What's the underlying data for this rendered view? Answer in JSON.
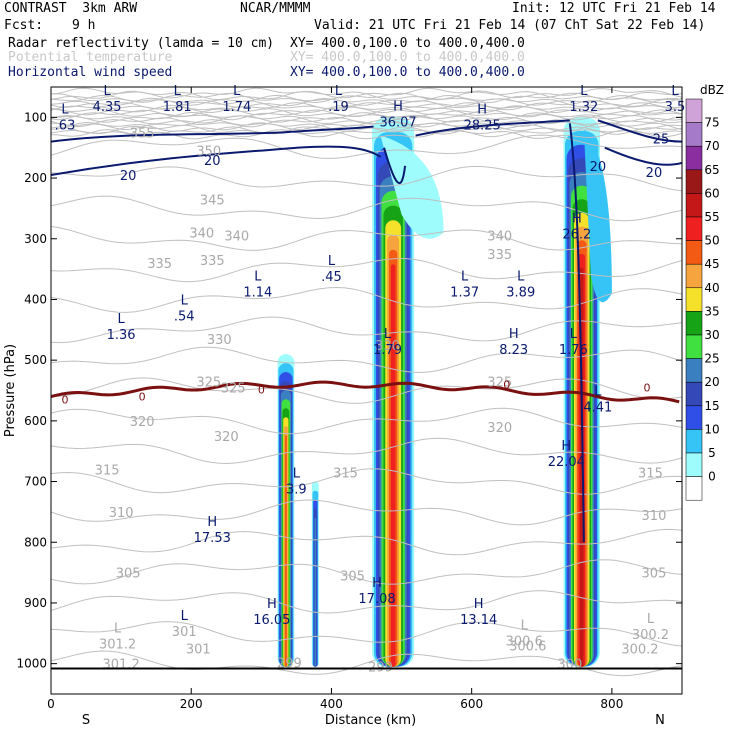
{
  "header": {
    "model": "CONTRAST  3km ARW",
    "org": "NCAR/MMMM",
    "init": "Init: 12 UTC Fri 21 Feb 14",
    "fcst_label": "Fcst:",
    "fcst_value": "9 h",
    "valid": "Valid: 21 UTC Fri 21 Feb 14 (07 ChT Sat 22 Feb 14)",
    "field1_name": "Radar reflectivity (lamda = 10 cm)",
    "field1_xy": "XY= 400.0,100.0 to 400.0,400.0",
    "field2_name": "Potential temperature",
    "field2_xy": "XY= 400.0,100.0 to 400.0,400.0",
    "field3_name": "Horizontal wind speed",
    "field3_xy": "XY= 400.0,100.0 to 400.0,400.0"
  },
  "colors": {
    "theta": "#c0c0c0",
    "wind": "#0a1a6e",
    "zero_isotherm": "#7a1010",
    "ground": "#000000"
  },
  "chart_data": {
    "type": "heatmap",
    "xlabel": "Distance (km)",
    "ylabel": "Pressure (hPa)",
    "xlim": [
      0,
      900
    ],
    "ylim": [
      1050,
      50
    ],
    "x_ticks": [
      0,
      200,
      400,
      600,
      800
    ],
    "y_ticks": [
      100,
      200,
      300,
      400,
      500,
      600,
      700,
      800,
      900,
      1000
    ],
    "x_end_labels": {
      "left": "S",
      "right": "N"
    },
    "colorbar": {
      "unit": "dBZ",
      "levels": [
        0,
        5,
        10,
        15,
        20,
        25,
        30,
        35,
        40,
        45,
        50,
        55,
        60,
        65,
        70,
        75
      ],
      "colors": [
        "#ffffff",
        "#9efcfc",
        "#36c3f6",
        "#2f4fe6",
        "#3448b8",
        "#3a7fbf",
        "#3fe03f",
        "#16a416",
        "#f6e12a",
        "#f5a43e",
        "#f35a14",
        "#ee2020",
        "#c41818",
        "#9a1818",
        "#8a2ea0",
        "#a57ac9",
        "#cfa2d8"
      ]
    },
    "reflectivity_columns": [
      {
        "name": "cell-330km",
        "center_km": 335,
        "width_km": 24,
        "top_hPa": 490,
        "max_dbz": 45
      },
      {
        "name": "cell-375km",
        "center_km": 377,
        "width_km": 10,
        "top_hPa": 700,
        "max_dbz": 20
      },
      {
        "name": "cell-490km",
        "center_km": 488,
        "width_km": 60,
        "top_hPa": 100,
        "max_dbz": 50
      },
      {
        "name": "cell-760km",
        "center_km": 757,
        "width_km": 52,
        "top_hPa": 100,
        "max_dbz": 55
      }
    ],
    "theta_contour_labels": [
      "355",
      "350",
      "345",
      "340",
      "340",
      "340",
      "335",
      "335",
      "335",
      "330",
      "330",
      "325",
      "325",
      "325",
      "320",
      "320",
      "320",
      "315",
      "315",
      "315",
      "310",
      "310",
      "305",
      "305",
      "305",
      "300.6",
      "301",
      "301.2",
      "300.2",
      "299",
      "299",
      "300"
    ],
    "wind_contour_labels": [
      "20",
      "20",
      "20",
      "25",
      "20"
    ],
    "zero_isotherm_label": "0",
    "extrema": [
      {
        "type": "L",
        "value": "4.35"
      },
      {
        "type": "L",
        "value": "1.81"
      },
      {
        "type": "L",
        "value": "1.74"
      },
      {
        "type": "L",
        "value": ".19"
      },
      {
        "type": "H",
        "value": "36.07"
      },
      {
        "type": "H",
        "value": "28.25"
      },
      {
        "type": "L",
        "value": "1.32"
      },
      {
        "type": "L",
        "value": "3.5"
      },
      {
        "type": "L",
        "value": ".63"
      },
      {
        "type": "H",
        "value": "26.2"
      },
      {
        "type": "L",
        "value": ".45"
      },
      {
        "type": "L",
        "value": "1.14"
      },
      {
        "type": "L",
        "value": "1.37"
      },
      {
        "type": "L",
        "value": "3.89"
      },
      {
        "type": "L",
        "value": ".54"
      },
      {
        "type": "L",
        "value": "1.36"
      },
      {
        "type": "L",
        "value": "1.79"
      },
      {
        "type": "H",
        "value": "8.23"
      },
      {
        "type": "L",
        "value": "1.76"
      },
      {
        "type": "L",
        "value": "4.41"
      },
      {
        "type": "H",
        "value": "22.04"
      },
      {
        "type": "L",
        "value": "3.9"
      },
      {
        "type": "H",
        "value": "17.53"
      },
      {
        "type": "H",
        "value": "17.08"
      },
      {
        "type": "H",
        "value": "16.05"
      },
      {
        "type": "H",
        "value": "13.14"
      },
      {
        "type": "L",
        "value": "301"
      },
      {
        "type": "L",
        "value": "301.2"
      },
      {
        "type": "L",
        "value": "300.6"
      },
      {
        "type": "L",
        "value": "300.2"
      }
    ]
  }
}
